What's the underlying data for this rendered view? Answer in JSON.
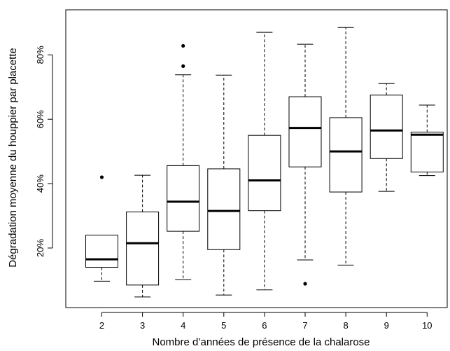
{
  "chart_data": {
    "type": "boxplot",
    "title": "",
    "xlabel": "Nombre d’années de présence de la chalarose",
    "ylabel": "Dégradation moyenne du houppier par placette",
    "ylim": [
      1.5,
      94
    ],
    "yticks": [
      20,
      40,
      60,
      80
    ],
    "ytick_labels": [
      "20%",
      "40%",
      "60%",
      "80%"
    ],
    "grid": false,
    "categories": [
      "2",
      "3",
      "4",
      "5",
      "6",
      "7",
      "8",
      "9",
      "10"
    ],
    "boxes": [
      {
        "category": "2",
        "whisker_low": 9.7,
        "q1": 14.0,
        "median": 16.5,
        "q3": 24.0,
        "whisker_high": 24.0,
        "outliers": [
          42.0
        ]
      },
      {
        "category": "3",
        "whisker_low": 4.8,
        "q1": 8.5,
        "median": 21.5,
        "q3": 31.2,
        "whisker_high": 42.6,
        "outliers": []
      },
      {
        "category": "4",
        "whisker_low": 10.2,
        "q1": 25.2,
        "median": 34.4,
        "q3": 45.6,
        "whisker_high": 73.8,
        "outliers": [
          76.5,
          82.8
        ]
      },
      {
        "category": "5",
        "whisker_low": 5.4,
        "q1": 19.5,
        "median": 31.5,
        "q3": 44.6,
        "whisker_high": 73.7,
        "outliers": []
      },
      {
        "category": "6",
        "whisker_low": 7.0,
        "q1": 31.6,
        "median": 41.0,
        "q3": 55.0,
        "whisker_high": 87.0,
        "outliers": []
      },
      {
        "category": "7",
        "whisker_low": 16.3,
        "q1": 45.2,
        "median": 57.3,
        "q3": 67.0,
        "whisker_high": 83.3,
        "outliers": [
          8.9
        ]
      },
      {
        "category": "8",
        "whisker_low": 14.7,
        "q1": 37.4,
        "median": 50.0,
        "q3": 60.5,
        "whisker_high": 88.5,
        "outliers": []
      },
      {
        "category": "9",
        "whisker_low": 37.6,
        "q1": 47.8,
        "median": 56.5,
        "q3": 67.5,
        "whisker_high": 71.1,
        "outliers": []
      },
      {
        "category": "10",
        "whisker_low": 42.5,
        "q1": 43.6,
        "median": 55.2,
        "q3": 56.0,
        "whisker_high": 64.4,
        "outliers": []
      }
    ]
  }
}
